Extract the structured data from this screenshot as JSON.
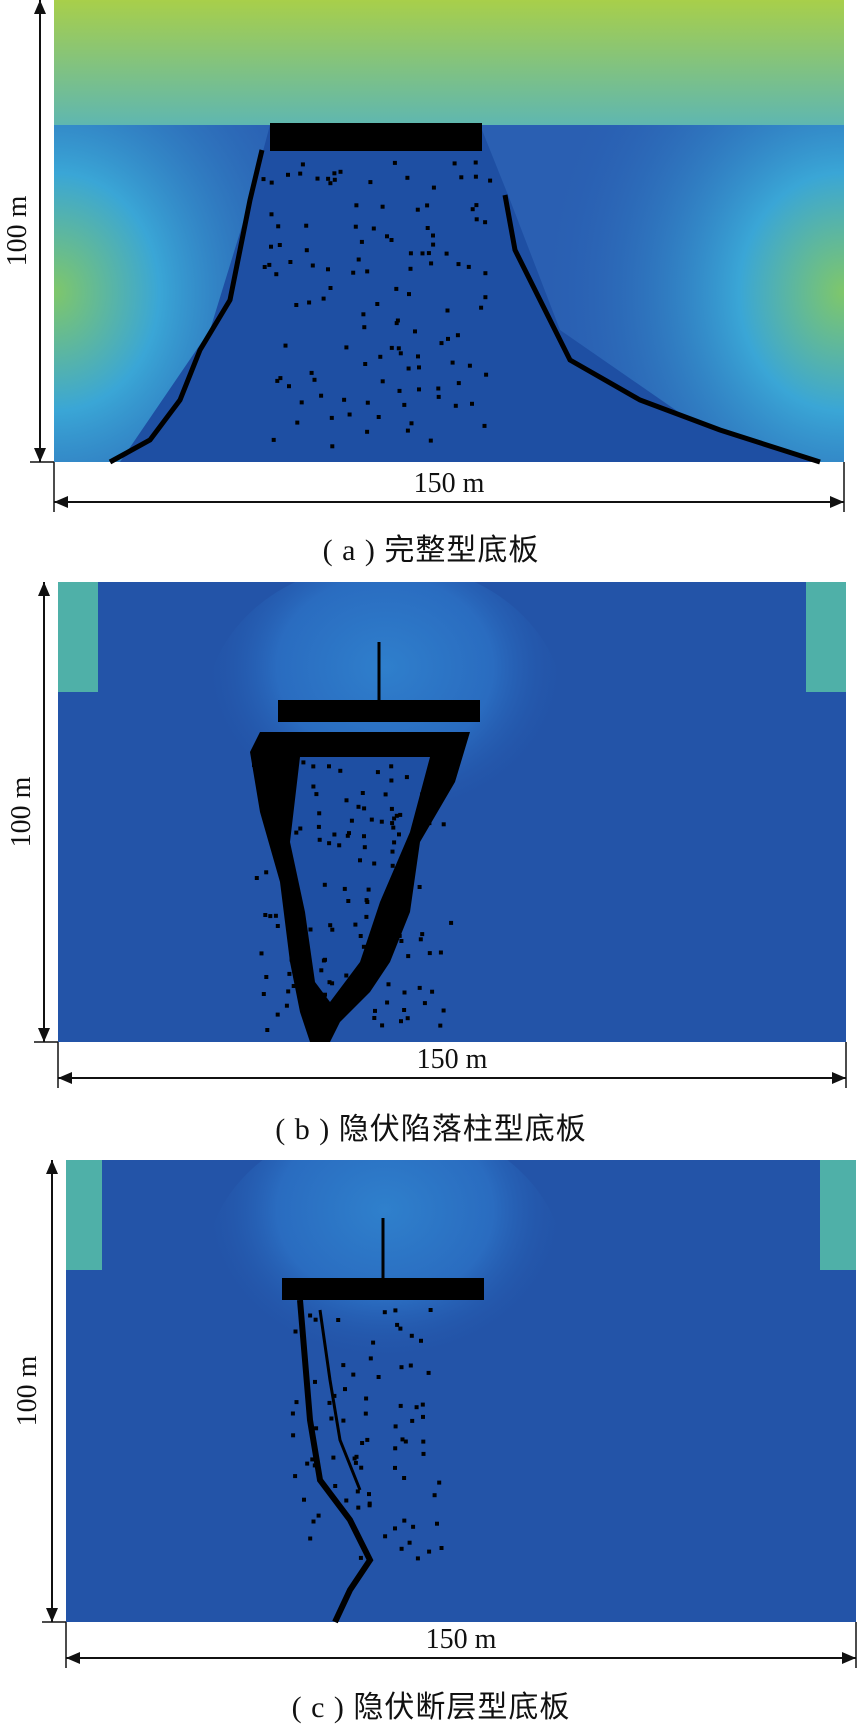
{
  "panels": [
    {
      "id": "a",
      "caption": "( a ) 完整型底板",
      "height_label": "100 m",
      "width_label": "150 m",
      "type": "intact"
    },
    {
      "id": "b",
      "caption": "( b ) 隐伏陷落柱型底板",
      "height_label": "100 m",
      "width_label": "150 m",
      "type": "collapse-column"
    },
    {
      "id": "c",
      "caption": "( c ) 隐伏断层型底板",
      "height_label": "100 m",
      "width_label": "150 m",
      "type": "fault"
    }
  ],
  "colors": {
    "background_blue": "#1f55a8",
    "mid_blue": "#2f77c6",
    "cyan": "#3cb4d8",
    "green": "#8cc65a",
    "failure": "#000000"
  }
}
